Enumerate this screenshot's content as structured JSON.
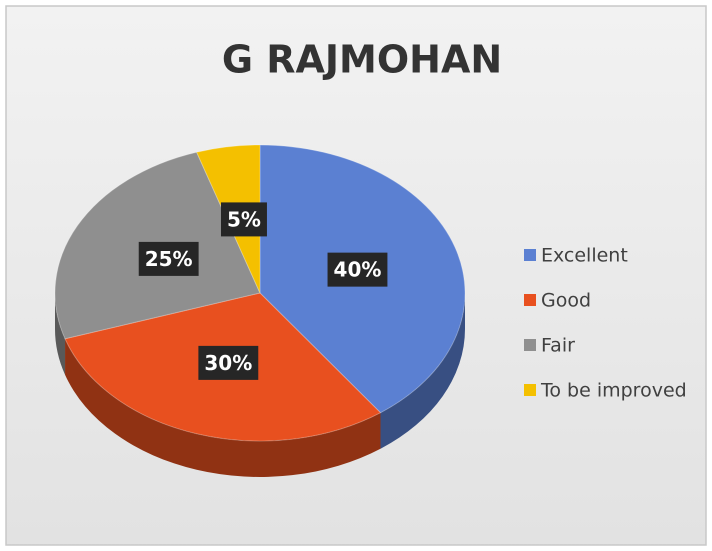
{
  "chart_data": {
    "type": "pie",
    "title": "G RAJMOHAN",
    "categories": [
      "Excellent",
      "Good",
      "Fair",
      "To be improved"
    ],
    "values": [
      40,
      30,
      25,
      5
    ],
    "value_labels": [
      "40%",
      "30%",
      "25%",
      "5%"
    ],
    "colors": [
      "#5b80d2",
      "#e8501f",
      "#8f8f8f",
      "#f4c000"
    ],
    "legend": "right"
  }
}
